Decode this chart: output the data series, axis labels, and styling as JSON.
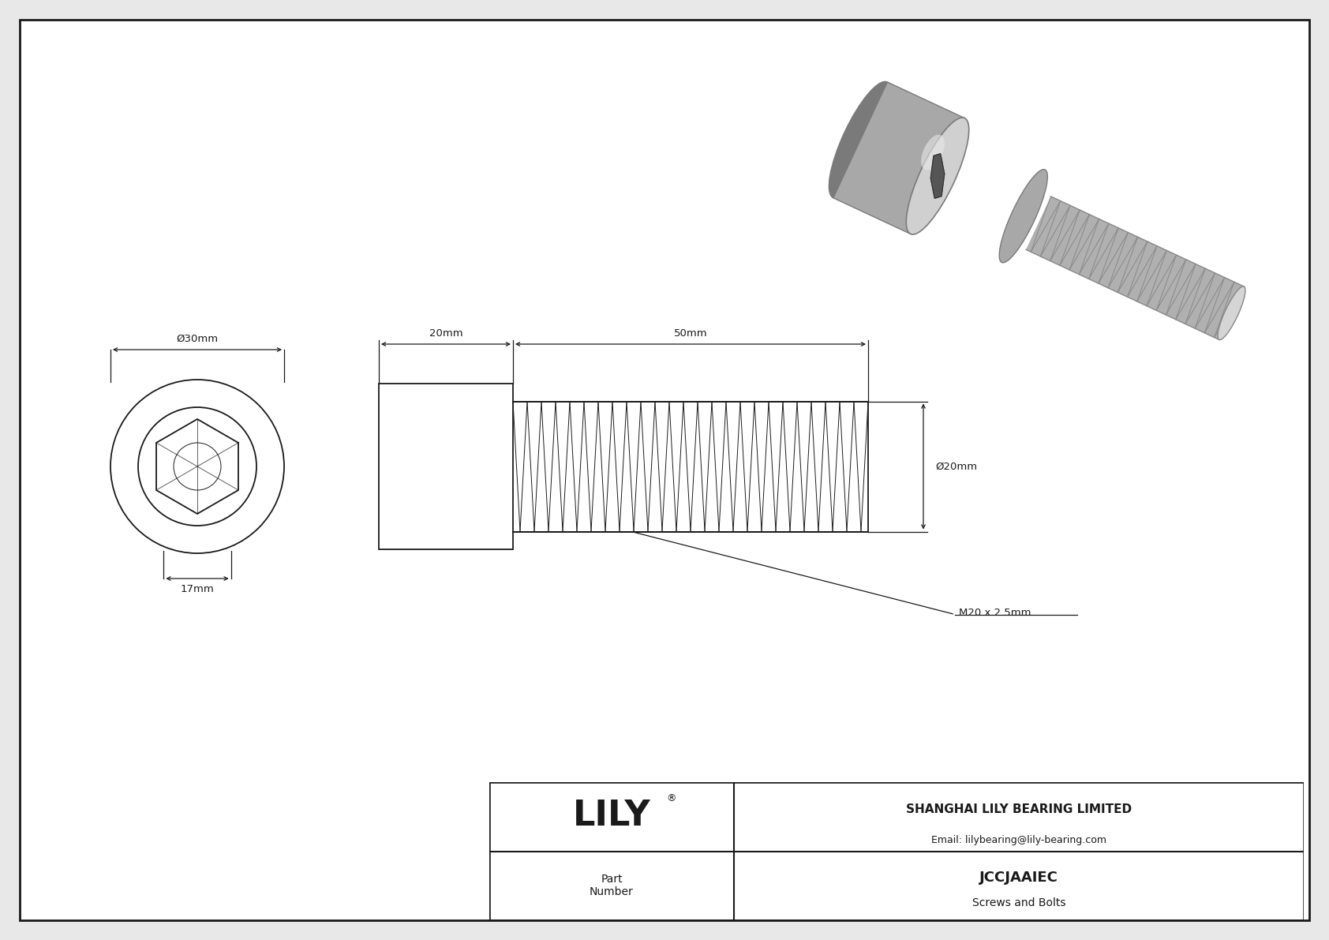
{
  "bg_color": "#e8e8e8",
  "drawing_bg": "#ffffff",
  "line_color": "#1a1a1a",
  "title": "JCCJAAIEC",
  "subtitle": "Screws and Bolts",
  "company": "SHANGHAI LILY BEARING LIMITED",
  "email": "Email: lilybearing@lily-bearing.com",
  "part_label": "Part\nNumber",
  "lily_text": "LILY",
  "dim_outer_dia": "Ø30mm",
  "dim_hex": "17mm",
  "dim_head_len": "20mm",
  "dim_thread_len": "50mm",
  "dim_shaft_dia": "Ø20mm",
  "thread_label": "M20 x 2.5mm",
  "fig_width": 16.84,
  "fig_height": 11.91
}
